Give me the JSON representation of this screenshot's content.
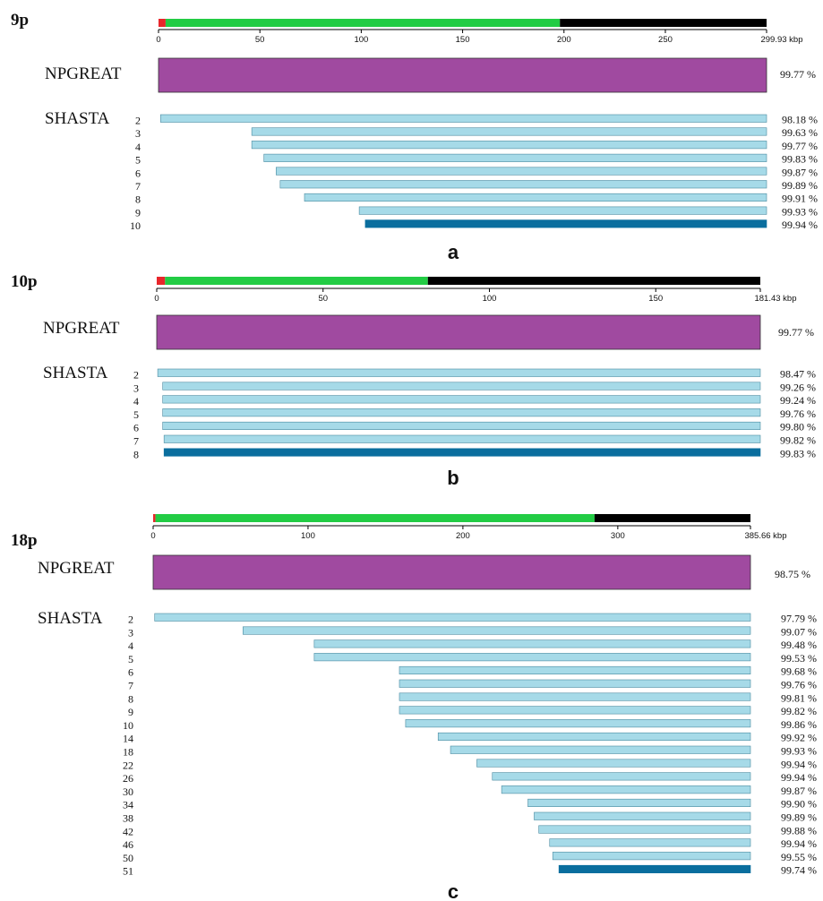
{
  "colors": {
    "centromere_red": "#e8262b",
    "assembled_green": "#22cc44",
    "unassembled_black": "#000000",
    "npgreat_purple": "#a04aa0",
    "shasta_light": "#a6dae8",
    "shasta_dark": "#0a6e9e"
  },
  "panels": [
    {
      "id": "a",
      "chromosome": "9p",
      "letter": "a",
      "total_kbp": 299.93,
      "total_label": "299.93 kbp",
      "ticks": [
        0,
        50,
        100,
        150,
        200,
        250
      ],
      "red_end_kbp": 3.5,
      "green_end_kbp": 198,
      "npgreat": {
        "label": "NPGREAT",
        "start_kbp": 0,
        "identity": "99.77 %"
      },
      "shasta": {
        "label": "SHASTA",
        "rows": [
          {
            "n": "2",
            "start_kbp": 1,
            "identity": "98.18 %",
            "final": false
          },
          {
            "n": "3",
            "start_kbp": 46,
            "identity": "99.63 %",
            "final": false
          },
          {
            "n": "4",
            "start_kbp": 46,
            "identity": "99.77 %",
            "final": false
          },
          {
            "n": "5",
            "start_kbp": 52,
            "identity": "99.83 %",
            "final": false
          },
          {
            "n": "6",
            "start_kbp": 58,
            "identity": "99.87 %",
            "final": false
          },
          {
            "n": "7",
            "start_kbp": 60,
            "identity": "99.89 %",
            "final": false
          },
          {
            "n": "8",
            "start_kbp": 72,
            "identity": "99.91 %",
            "final": false
          },
          {
            "n": "9",
            "start_kbp": 99,
            "identity": "99.93 %",
            "final": false
          },
          {
            "n": "10",
            "start_kbp": 102,
            "identity": "99.94 %",
            "final": true
          }
        ]
      }
    },
    {
      "id": "b",
      "chromosome": "10p",
      "letter": "b",
      "total_kbp": 181.43,
      "total_label": "181.43 kbp",
      "ticks": [
        0,
        50,
        100,
        150
      ],
      "red_end_kbp": 2.5,
      "green_end_kbp": 81.5,
      "npgreat": {
        "label": "NPGREAT",
        "start_kbp": 0,
        "identity": "99.77 %"
      },
      "shasta": {
        "label": "SHASTA",
        "rows": [
          {
            "n": "2",
            "start_kbp": 0.3,
            "identity": "98.47 %",
            "final": false
          },
          {
            "n": "3",
            "start_kbp": 1.8,
            "identity": "99.26 %",
            "final": false
          },
          {
            "n": "4",
            "start_kbp": 1.8,
            "identity": "99.24 %",
            "final": false
          },
          {
            "n": "5",
            "start_kbp": 1.8,
            "identity": "99.76 %",
            "final": false
          },
          {
            "n": "6",
            "start_kbp": 1.8,
            "identity": "99.80 %",
            "final": false
          },
          {
            "n": "7",
            "start_kbp": 2.2,
            "identity": "99.82 %",
            "final": false
          },
          {
            "n": "8",
            "start_kbp": 2.2,
            "identity": "99.83 %",
            "final": true
          }
        ]
      }
    },
    {
      "id": "c",
      "chromosome": "18p",
      "letter": "c",
      "total_kbp": 385.66,
      "total_label": "385.66 kbp",
      "ticks": [
        0,
        100,
        200,
        300
      ],
      "red_end_kbp": 1.5,
      "green_end_kbp": 285,
      "npgreat": {
        "label": "NPGREAT",
        "start_kbp": 0,
        "identity": "98.75 %"
      },
      "shasta": {
        "label": "SHASTA",
        "rows": [
          {
            "n": "2",
            "start_kbp": 1,
            "identity": "97.79 %",
            "final": false
          },
          {
            "n": "3",
            "start_kbp": 58,
            "identity": "99.07 %",
            "final": false
          },
          {
            "n": "4",
            "start_kbp": 104,
            "identity": "99.48 %",
            "final": false
          },
          {
            "n": "5",
            "start_kbp": 104,
            "identity": "99.53 %",
            "final": false
          },
          {
            "n": "6",
            "start_kbp": 159,
            "identity": "99.68 %",
            "final": false
          },
          {
            "n": "7",
            "start_kbp": 159,
            "identity": "99.76 %",
            "final": false
          },
          {
            "n": "8",
            "start_kbp": 159,
            "identity": "99.81 %",
            "final": false
          },
          {
            "n": "9",
            "start_kbp": 159,
            "identity": "99.82 %",
            "final": false
          },
          {
            "n": "10",
            "start_kbp": 163,
            "identity": "99.86 %",
            "final": false
          },
          {
            "n": "14",
            "start_kbp": 184,
            "identity": "99.92 %",
            "final": false
          },
          {
            "n": "18",
            "start_kbp": 192,
            "identity": "99.93 %",
            "final": false
          },
          {
            "n": "22",
            "start_kbp": 209,
            "identity": "99.94 %",
            "final": false
          },
          {
            "n": "26",
            "start_kbp": 219,
            "identity": "99.94 %",
            "final": false
          },
          {
            "n": "30",
            "start_kbp": 225,
            "identity": "99.87 %",
            "final": false
          },
          {
            "n": "34",
            "start_kbp": 242,
            "identity": "99.90 %",
            "final": false
          },
          {
            "n": "38",
            "start_kbp": 246,
            "identity": "99.89 %",
            "final": false
          },
          {
            "n": "42",
            "start_kbp": 249,
            "identity": "99.88 %",
            "final": false
          },
          {
            "n": "46",
            "start_kbp": 256,
            "identity": "99.94 %",
            "final": false
          },
          {
            "n": "50",
            "start_kbp": 258,
            "identity": "99.55 %",
            "final": false
          },
          {
            "n": "51",
            "start_kbp": 262,
            "identity": "99.74 %",
            "final": true
          }
        ]
      }
    }
  ]
}
